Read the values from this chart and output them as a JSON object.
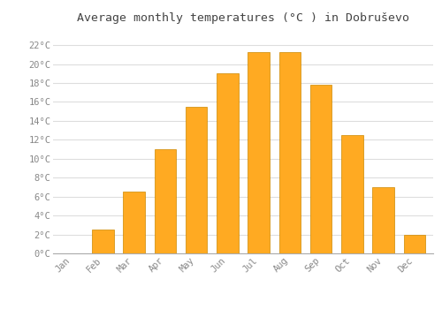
{
  "months": [
    "Jan",
    "Feb",
    "Mar",
    "Apr",
    "May",
    "Jun",
    "Jul",
    "Aug",
    "Sep",
    "Oct",
    "Nov",
    "Dec"
  ],
  "values": [
    0,
    2.5,
    6.5,
    11.0,
    15.5,
    19.0,
    21.3,
    21.3,
    17.8,
    12.5,
    7.0,
    2.0
  ],
  "bar_color": "#FFAA22",
  "bar_edge_color": "#CC8800",
  "title": "Average monthly temperatures (°C ) in Dobruševo",
  "title_fontsize": 9.5,
  "ylabel_ticks": [
    "0°C",
    "2°C",
    "4°C",
    "6°C",
    "8°C",
    "10°C",
    "12°C",
    "14°C",
    "16°C",
    "18°C",
    "20°C",
    "22°C"
  ],
  "ytick_values": [
    0,
    2,
    4,
    6,
    8,
    10,
    12,
    14,
    16,
    18,
    20,
    22
  ],
  "ylim": [
    0,
    23.5
  ],
  "background_color": "#ffffff",
  "grid_color": "#dddddd",
  "tick_label_color": "#888888",
  "tick_label_fontsize": 7.5,
  "font_family": "monospace",
  "bar_width": 0.7
}
